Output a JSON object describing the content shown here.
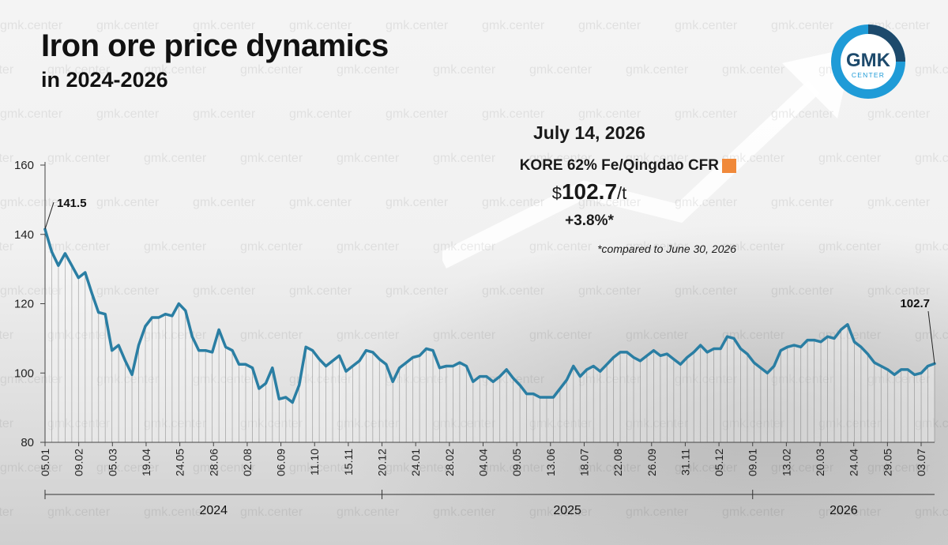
{
  "header": {
    "title": "Iron ore price dynamics",
    "subtitle": "in 2024-2026"
  },
  "logo": {
    "text": "GMK",
    "subtext": "CENTER",
    "ring_color": "#1f9bd7",
    "dark_color": "#1d4a6c"
  },
  "watermark": "gmk.center",
  "callout": {
    "date": "July 14, 2026",
    "series_label": "KORE 62% Fe/Qingdao CFR",
    "currency": "$",
    "price": "102.7",
    "unit": "/t",
    "change": "+3.8%*",
    "footnote": "*compared to June 30, 2026"
  },
  "colors": {
    "line": "#2a7ea3",
    "legend_swatch": "#f0893a"
  },
  "chart_data": {
    "type": "line",
    "title": "Iron ore price dynamics",
    "subtitle": "in 2024-2026",
    "ylim": [
      80,
      160
    ],
    "yticks": [
      80,
      100,
      120,
      140,
      160
    ],
    "grid": false,
    "x_tick_labels": [
      "05.01",
      "09.02",
      "05.03",
      "19.04",
      "24.05",
      "28.06",
      "02.08",
      "06.09",
      "11.10",
      "15.11",
      "20.12",
      "24.01",
      "28.02",
      "04.04",
      "09.05",
      "13.06",
      "18.07",
      "22.08",
      "26.09",
      "31.11",
      "05.12",
      "09.01",
      "13.02",
      "20.03",
      "24.04",
      "29.05",
      "03.07"
    ],
    "year_groups": [
      {
        "label": "2024",
        "start_tick": 0,
        "end_tick": 10
      },
      {
        "label": "2025",
        "start_tick": 10,
        "end_tick": 21
      },
      {
        "label": "2026",
        "start_tick": 21,
        "end_tick": 26
      }
    ],
    "annotations": [
      {
        "label": "141.5",
        "point": "first"
      },
      {
        "label": "102.7",
        "point": "last"
      }
    ],
    "series": [
      {
        "name": "KORE 62% Fe/Qingdao CFR",
        "values": [
          141.5,
          135,
          131,
          134.5,
          131,
          127.5,
          129,
          123,
          117.5,
          117,
          106.5,
          108,
          103.5,
          99.5,
          108,
          113.5,
          116,
          116,
          117,
          116.5,
          120,
          118,
          110.5,
          106.5,
          106.5,
          106,
          112.5,
          107.5,
          106.5,
          102.5,
          102.5,
          101.5,
          95.5,
          97,
          101.5,
          92.5,
          93,
          91.5,
          96.5,
          107.5,
          106.5,
          104,
          102,
          103.5,
          105,
          100.5,
          102,
          103.5,
          106.5,
          106,
          104,
          102.5,
          97.5,
          101.5,
          103,
          104.5,
          105,
          107,
          106.5,
          101.5,
          102,
          102,
          103,
          102,
          97.5,
          99,
          99,
          97.5,
          99,
          101,
          98.5,
          96.5,
          94,
          94,
          93,
          93,
          93,
          95.5,
          98,
          102,
          99,
          101,
          102,
          100.5,
          102.5,
          104.5,
          106,
          106,
          104.5,
          103.5,
          105,
          106.5,
          105,
          105.5,
          104,
          102.5,
          104.5,
          106,
          108,
          106,
          107,
          107,
          110.5,
          110,
          107,
          105.5,
          103,
          101.5,
          100,
          102,
          106.5,
          107.5,
          108,
          107.5,
          109.5,
          109.5,
          109,
          110.5,
          110,
          112.5,
          114,
          109,
          107.5,
          105.5,
          103,
          102,
          101,
          99.5,
          101,
          101,
          99.5,
          100,
          102,
          102.7
        ]
      }
    ]
  }
}
